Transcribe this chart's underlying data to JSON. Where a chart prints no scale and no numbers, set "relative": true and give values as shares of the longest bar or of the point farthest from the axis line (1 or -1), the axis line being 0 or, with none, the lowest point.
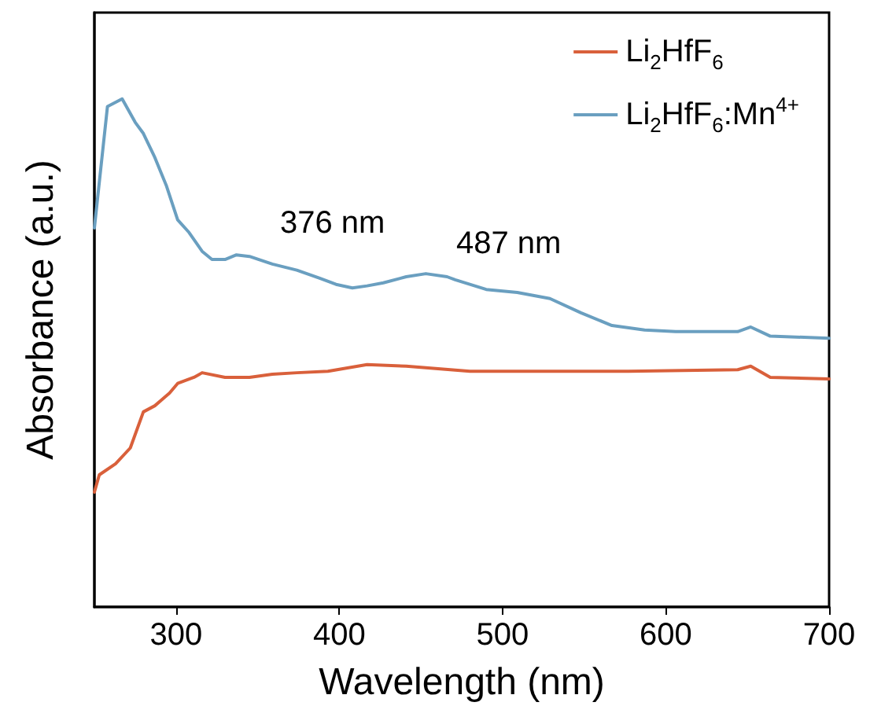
{
  "chart_data": {
    "type": "line",
    "relative": true,
    "xlabel": "Wavelength (nm)",
    "ylabel": "Absorbance (a.u.)",
    "xlim": [
      250,
      700
    ],
    "xticks": [
      300,
      400,
      500,
      600,
      700
    ],
    "grid": false,
    "legend": "top right",
    "marker": "none",
    "line_style": "solid",
    "annotations": [
      "376 nm",
      "487 nm"
    ],
    "series": [
      {
        "name": "Li$_{2}$HfF$_{6}$",
        "color": "#d9603b",
        "x": [
          250,
          253,
          263,
          272,
          280,
          287,
          296,
          301,
          311,
          316,
          330,
          345,
          359,
          374,
          393,
          417,
          441,
          480,
          529,
          577,
          644,
          652,
          664,
          700
        ],
        "values": [
          0.226,
          0.26,
          0.282,
          0.313,
          0.384,
          0.396,
          0.421,
          0.44,
          0.452,
          0.461,
          0.452,
          0.452,
          0.458,
          0.461,
          0.464,
          0.477,
          0.474,
          0.464,
          0.464,
          0.464,
          0.467,
          0.474,
          0.452,
          0.449
        ]
      },
      {
        "name": "Li$_{2}$HfF$_{6}$:Mn$^{4+}$",
        "color": "#6a9fc0",
        "x": [
          250,
          258,
          267,
          275,
          280,
          287,
          294,
          301,
          308,
          316,
          322,
          330,
          337,
          345,
          359,
          374,
          388,
          398,
          408,
          417,
          427,
          441,
          453,
          466,
          471,
          490,
          509,
          529,
          548,
          567,
          587,
          606,
          625,
          644,
          652,
          664,
          700
        ],
        "values": [
          0.746,
          0.985,
          1,
          0.954,
          0.932,
          0.885,
          0.83,
          0.762,
          0.737,
          0.7,
          0.684,
          0.684,
          0.693,
          0.69,
          0.675,
          0.663,
          0.647,
          0.635,
          0.628,
          0.632,
          0.638,
          0.65,
          0.656,
          0.65,
          0.644,
          0.625,
          0.619,
          0.607,
          0.579,
          0.554,
          0.545,
          0.542,
          0.542,
          0.542,
          0.551,
          0.533,
          0.529
        ]
      }
    ]
  }
}
